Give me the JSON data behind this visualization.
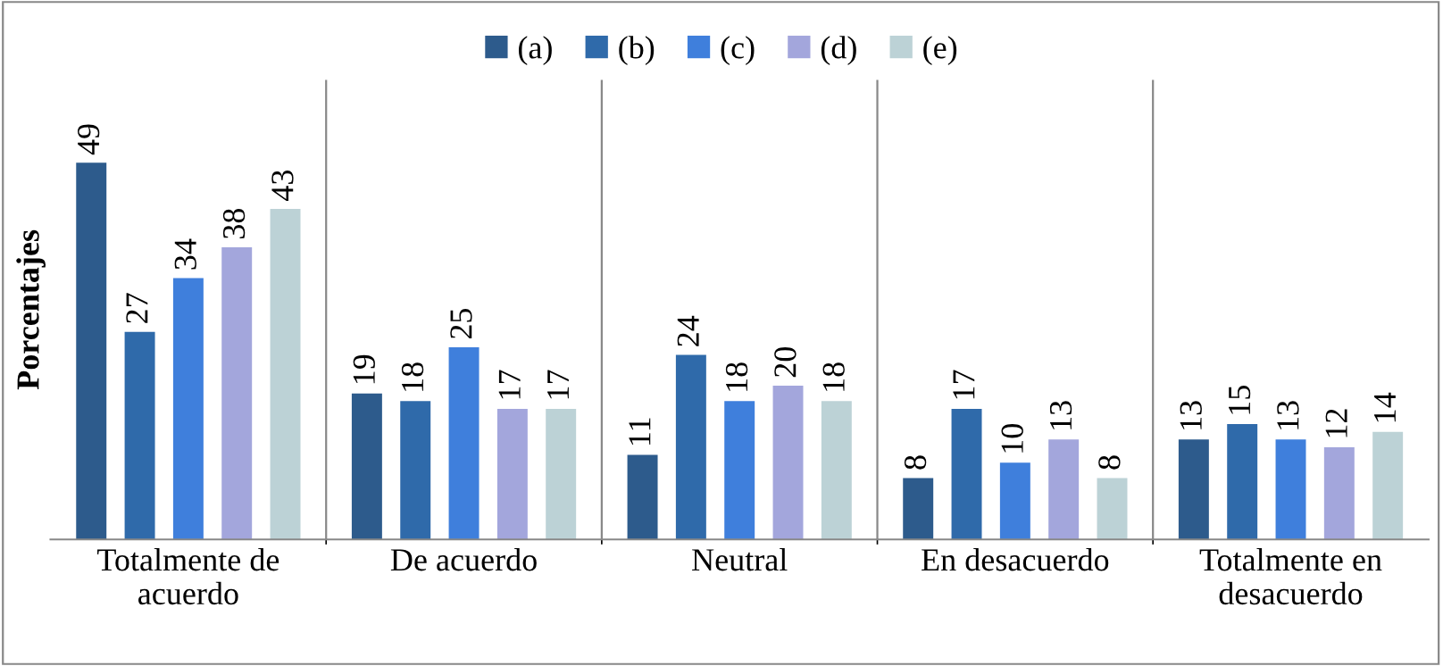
{
  "chart_data": {
    "type": "bar",
    "ylabel": "Porcentajes",
    "categories": [
      "Totalmente de\nacuerdo",
      "De acuerdo",
      "Neutral",
      "En desacuerdo",
      "Totalmente en\ndesacuerdo"
    ],
    "series": [
      {
        "name": "(a)",
        "color": "#2d5b8c",
        "values": [
          49,
          19,
          11,
          8,
          13
        ]
      },
      {
        "name": "(b)",
        "color": "#2f6aaa",
        "values": [
          27,
          18,
          24,
          17,
          15
        ]
      },
      {
        "name": "(c)",
        "color": "#3f7fdc",
        "values": [
          34,
          25,
          18,
          10,
          13
        ]
      },
      {
        "name": "(d)",
        "color": "#a3a6dc",
        "values": [
          38,
          17,
          20,
          13,
          12
        ]
      },
      {
        "name": "(e)",
        "color": "#bcd2d6",
        "values": [
          43,
          17,
          18,
          8,
          14
        ]
      }
    ],
    "data_labels": true,
    "legend": "top",
    "grid": "x",
    "tick_labels": "x"
  }
}
